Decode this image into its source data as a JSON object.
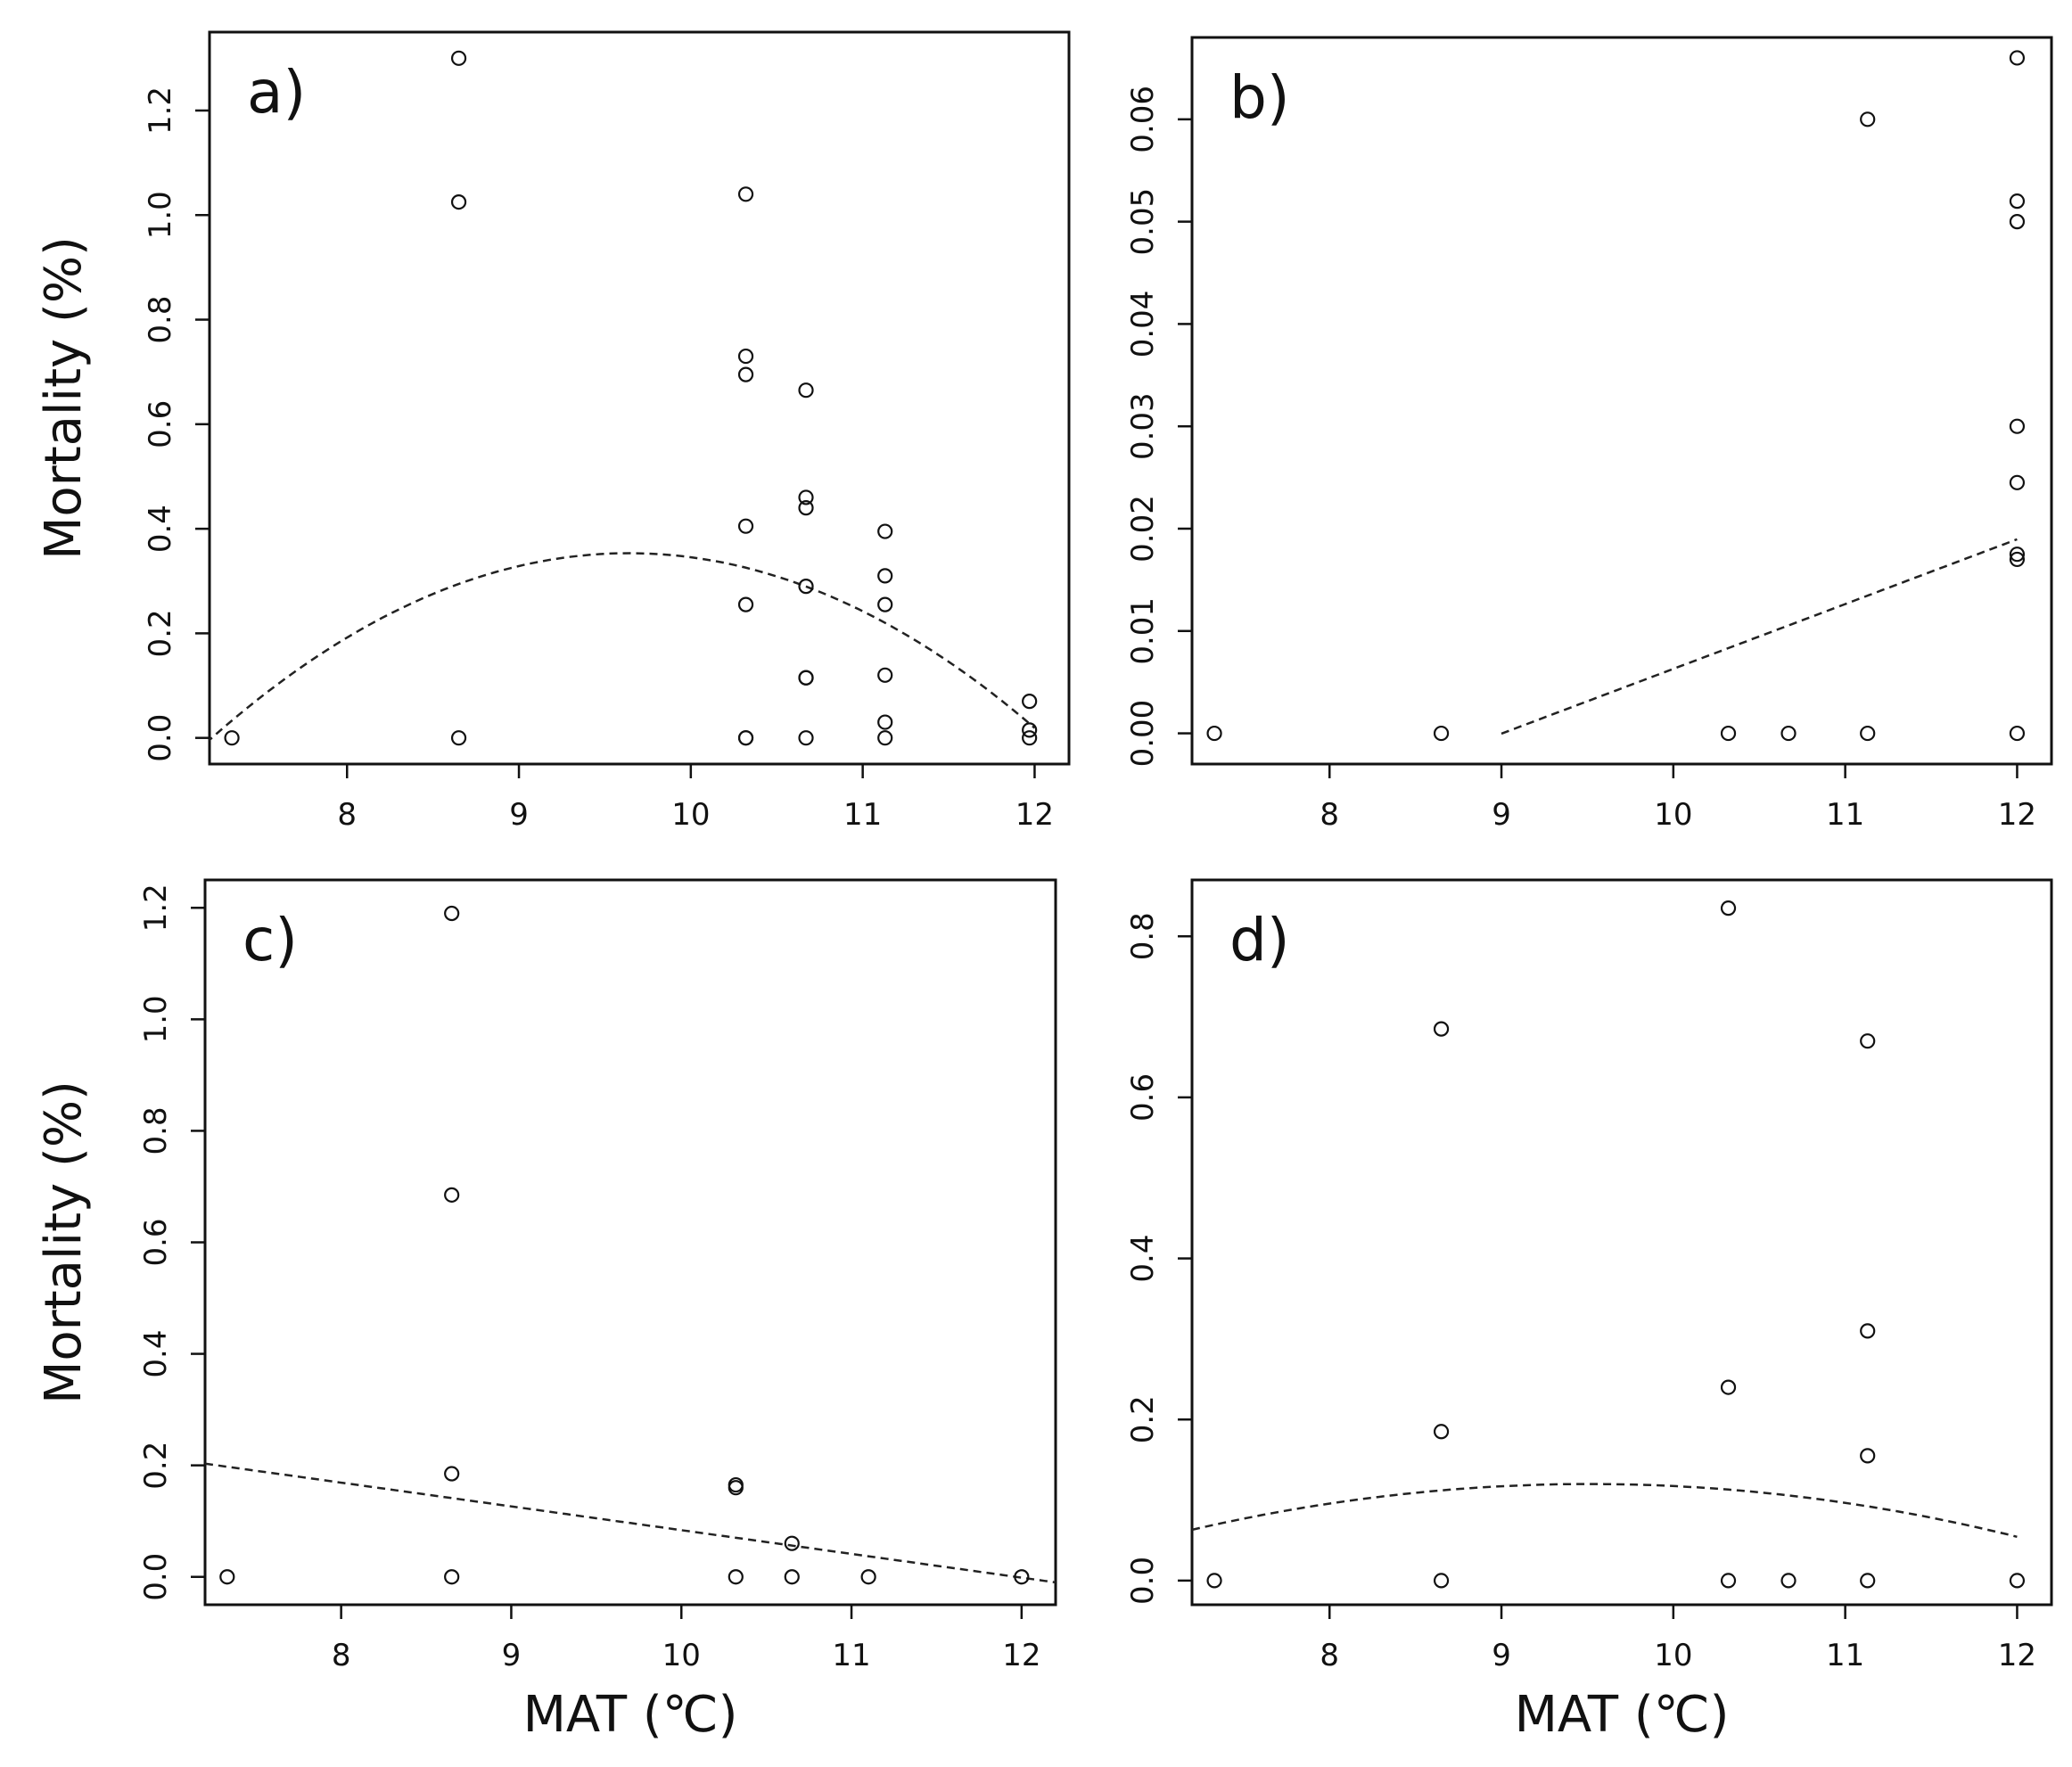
{
  "figure": {
    "shared_xlabel": "MAT (℃)",
    "shared_ylabel": "Mortality (%)"
  },
  "chart_data": [
    {
      "type": "scatter",
      "panel_label": "a)",
      "xlabel": "",
      "ylabel": "Mortality (%)",
      "xlim": [
        7.2,
        12.2
      ],
      "ylim": [
        -0.05,
        1.35
      ],
      "xticks": [
        "8",
        "9",
        "10",
        "11",
        "12"
      ],
      "yticks": [
        "0.0",
        "0.2",
        "0.4",
        "0.6",
        "0.8",
        "1.0",
        "1.2"
      ],
      "x": [
        7.33,
        8.65,
        8.65,
        8.65,
        10.32,
        10.32,
        10.32,
        10.32,
        10.32,
        10.32,
        10.32,
        10.67,
        10.67,
        10.67,
        10.67,
        10.67,
        10.67,
        10.67,
        11.13,
        11.13,
        11.13,
        11.13,
        11.13,
        11.13,
        11.97,
        11.97,
        11.97
      ],
      "y": [
        0.0,
        1.3,
        1.025,
        0.0,
        1.04,
        0.73,
        0.695,
        0.405,
        0.255,
        0.0,
        0.0,
        0.665,
        0.46,
        0.44,
        0.29,
        0.115,
        0.115,
        0.0,
        0.395,
        0.31,
        0.255,
        0.12,
        0.03,
        0.0,
        0.07,
        0.015,
        0.0
      ],
      "fit": {
        "style": "dashed",
        "kind": "quadratic",
        "x_range": [
          7.18,
          12.0
        ],
        "coefficients_abc": [
          -5.2225,
          1.1568,
          -0.06
        ]
      }
    },
    {
      "type": "scatter",
      "panel_label": "b)",
      "xlabel": "",
      "ylabel": "",
      "xlim": [
        7.2,
        12.2
      ],
      "ylim": [
        -0.003,
        0.068
      ],
      "xticks": [
        "8",
        "9",
        "10",
        "11",
        "12"
      ],
      "yticks": [
        "0.00",
        "0.01",
        "0.02",
        "0.03",
        "0.04",
        "0.05",
        "0.06"
      ],
      "x": [
        7.33,
        8.65,
        10.32,
        10.67,
        11.13,
        11.13,
        12.0,
        12.0,
        12.0,
        12.0,
        12.0,
        12.0,
        12.0,
        12.0
      ],
      "y": [
        0.0,
        0.0,
        0.0,
        0.0,
        0.0,
        0.06,
        0.066,
        0.052,
        0.05,
        0.03,
        0.0245,
        0.0175,
        0.017,
        0.0
      ],
      "fit": {
        "style": "dashed",
        "kind": "linear",
        "x_range": [
          9.0,
          12.0
        ],
        "coefficients_abc": [
          -0.057,
          0.00633,
          0
        ]
      }
    },
    {
      "type": "scatter",
      "panel_label": "c)",
      "xlabel": "MAT (℃)",
      "ylabel": "Mortality (%)",
      "xlim": [
        7.2,
        12.2
      ],
      "ylim": [
        -0.05,
        1.25
      ],
      "xticks": [
        "8",
        "9",
        "10",
        "11",
        "12"
      ],
      "yticks": [
        "0.0",
        "0.2",
        "0.4",
        "0.6",
        "0.8",
        "1.0",
        "1.2"
      ],
      "x": [
        7.33,
        8.65,
        8.65,
        8.65,
        8.65,
        10.32,
        10.32,
        10.32,
        10.65,
        10.65,
        11.1,
        12.0
      ],
      "y": [
        0.0,
        1.19,
        0.685,
        0.185,
        0.0,
        0.165,
        0.16,
        0.0,
        0.06,
        0.0,
        0.0,
        0.0
      ],
      "fit": {
        "style": "dashed",
        "kind": "linear",
        "x_range": [
          7.2,
          12.2
        ],
        "coefficients_abc": [
          0.5098,
          -0.0426,
          0
        ]
      }
    },
    {
      "type": "scatter",
      "panel_label": "d)",
      "xlabel": "MAT (℃)",
      "ylabel": "",
      "xlim": [
        7.2,
        12.2
      ],
      "ylim": [
        -0.03,
        0.87
      ],
      "xticks": [
        "8",
        "9",
        "10",
        "11",
        "12"
      ],
      "yticks": [
        "0.0",
        "0.2",
        "0.4",
        "0.6",
        "0.8"
      ],
      "x": [
        7.33,
        8.65,
        8.65,
        8.65,
        10.32,
        10.32,
        10.32,
        10.67,
        11.13,
        11.13,
        11.13,
        11.13,
        12.0
      ],
      "y": [
        0.0,
        0.685,
        0.185,
        0.0,
        0.835,
        0.24,
        0.0,
        0.0,
        0.67,
        0.31,
        0.155,
        0.0,
        0.0
      ],
      "fit": {
        "style": "dashed",
        "kind": "quadratic",
        "x_range": [
          7.2,
          12.0
        ],
        "coefficients_abc": [
          -0.8396,
          0.2017,
          -0.0106
        ]
      }
    }
  ]
}
